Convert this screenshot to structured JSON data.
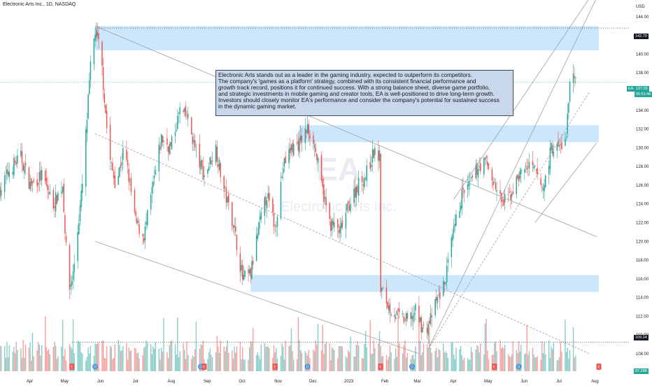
{
  "header": {
    "title": "Electronic Arts Inc., 1D, NASDAQ"
  },
  "watermark": {
    "symbol": "EA",
    "name": "Electronic Arts Inc."
  },
  "annotation": {
    "lines": [
      "Electronic Arts stands out as a leader in the gaming industry, expected to outperform its competitors.",
      "The company's 'games as a platform' strategy, combined with its consistent financial performance and",
      "growth track record, positions it for continued success. With a strong balance sheet, diverse game portfolio,",
      "and strategic investments in mobile gaming and creator tools, EA is well-positioned to drive long-term growth.",
      "Investors should closely monitor EA's performance and consider the company's potential for sustained success",
      "in the dynamic gaming market."
    ]
  },
  "price_axis": {
    "currency": "USD",
    "current_symbol": "EA",
    "current_price": "137.02",
    "countdown": "05:51:46",
    "marker_high": "142.79",
    "marker_low": "109.24",
    "volume_marker": "87.28K"
  },
  "colors": {
    "up": "#26a69a",
    "down": "#ef5350",
    "zone": "#bbdefb",
    "trend": "#9e9e9e",
    "annotation_bg": "#c9d7ea"
  },
  "chart_data": {
    "type": "candlestick",
    "ylim": [
      106,
      146
    ],
    "yticks": [
      106,
      108,
      110,
      112,
      114,
      116,
      118,
      120,
      122,
      124,
      126,
      128,
      130,
      132,
      134,
      136,
      138,
      140,
      142,
      144
    ],
    "x_months": [
      {
        "label": "Apr",
        "date": "2022-04-01"
      },
      {
        "label": "May",
        "date": "2022-05-01"
      },
      {
        "label": "Jun",
        "date": "2022-06-01"
      },
      {
        "label": "Jul",
        "date": "2022-07-01"
      },
      {
        "label": "Aug",
        "date": "2022-08-01"
      },
      {
        "label": "Sep",
        "date": "2022-09-01"
      },
      {
        "label": "Oct",
        "date": "2022-10-01"
      },
      {
        "label": "Nov",
        "date": "2022-11-01"
      },
      {
        "label": "Dec",
        "date": "2022-12-01"
      },
      {
        "label": "2023",
        "date": "2023-01-01"
      },
      {
        "label": "Feb",
        "date": "2023-02-01"
      },
      {
        "label": "Mar",
        "date": "2023-03-01"
      },
      {
        "label": "Apr",
        "date": "2023-04-01"
      },
      {
        "label": "May",
        "date": "2023-05-01"
      },
      {
        "label": "Jun",
        "date": "2023-06-01"
      },
      {
        "label": "Jul",
        "date": "2023-07-01"
      },
      {
        "label": "Aug",
        "date": "2023-08-01"
      }
    ],
    "date_range": [
      "2022-03-10",
      "2023-08-08"
    ],
    "close_path": [
      [
        "2022-03-10",
        125.5
      ],
      [
        "2022-03-20",
        128.0
      ],
      [
        "2022-03-28",
        129.0
      ],
      [
        "2022-04-05",
        126.0
      ],
      [
        "2022-04-15",
        127.0
      ],
      [
        "2022-04-25",
        124.0
      ],
      [
        "2022-05-03",
        126.0
      ],
      [
        "2022-05-08",
        114.5
      ],
      [
        "2022-05-12",
        116.5
      ],
      [
        "2022-05-20",
        126.0
      ],
      [
        "2022-05-27",
        138.5
      ],
      [
        "2022-05-31",
        142.5
      ],
      [
        "2022-06-05",
        140.0
      ],
      [
        "2022-06-12",
        129.0
      ],
      [
        "2022-06-18",
        126.0
      ],
      [
        "2022-06-25",
        130.0
      ],
      [
        "2022-07-05",
        122.0
      ],
      [
        "2022-07-12",
        120.5
      ],
      [
        "2022-07-20",
        126.0
      ],
      [
        "2022-07-27",
        131.0
      ],
      [
        "2022-08-04",
        130.0
      ],
      [
        "2022-08-12",
        134.0
      ],
      [
        "2022-08-19",
        133.0
      ],
      [
        "2022-08-27",
        129.0
      ],
      [
        "2022-09-02",
        127.0
      ],
      [
        "2022-09-12",
        130.0
      ],
      [
        "2022-09-18",
        126.0
      ],
      [
        "2022-09-27",
        122.0
      ],
      [
        "2022-10-05",
        116.0
      ],
      [
        "2022-10-12",
        116.5
      ],
      [
        "2022-10-19",
        121.5
      ],
      [
        "2022-10-26",
        125.0
      ],
      [
        "2022-11-02",
        121.5
      ],
      [
        "2022-11-09",
        128.0
      ],
      [
        "2022-11-16",
        130.0
      ],
      [
        "2022-11-23",
        130.5
      ],
      [
        "2022-11-30",
        132.0
      ],
      [
        "2022-12-05",
        131.0
      ],
      [
        "2022-12-12",
        126.0
      ],
      [
        "2022-12-19",
        122.0
      ],
      [
        "2022-12-28",
        121.0
      ],
      [
        "2023-01-05",
        124.0
      ],
      [
        "2023-01-12",
        126.0
      ],
      [
        "2023-01-19",
        127.0
      ],
      [
        "2023-01-26",
        129.5
      ],
      [
        "2023-01-31",
        129.0
      ],
      [
        "2023-02-01",
        115.0
      ],
      [
        "2023-02-08",
        113.0
      ],
      [
        "2023-02-16",
        112.0
      ],
      [
        "2023-02-24",
        111.5
      ],
      [
        "2023-03-03",
        112.5
      ],
      [
        "2023-03-10",
        110.5
      ],
      [
        "2023-03-14",
        111.0
      ],
      [
        "2023-03-21",
        113.5
      ],
      [
        "2023-03-28",
        115.5
      ],
      [
        "2023-04-05",
        121.0
      ],
      [
        "2023-04-12",
        125.0
      ],
      [
        "2023-04-19",
        126.0
      ],
      [
        "2023-04-26",
        128.0
      ],
      [
        "2023-05-03",
        128.5
      ],
      [
        "2023-05-10",
        126.0
      ],
      [
        "2023-05-17",
        124.0
      ],
      [
        "2023-05-24",
        125.0
      ],
      [
        "2023-05-31",
        127.0
      ],
      [
        "2023-06-07",
        128.0
      ],
      [
        "2023-06-14",
        127.5
      ],
      [
        "2023-06-21",
        125.5
      ],
      [
        "2023-06-28",
        130.0
      ],
      [
        "2023-07-05",
        130.0
      ],
      [
        "2023-07-11",
        131.0
      ],
      [
        "2023-07-14",
        137.5
      ],
      [
        "2023-07-19",
        137.0
      ]
    ],
    "zones": [
      {
        "y1": 140.4,
        "y2": 143.0,
        "from": "2022-05-31",
        "to": "2023-08-08"
      },
      {
        "y1": 130.6,
        "y2": 132.4,
        "from": "2022-11-23",
        "to": "2023-08-08"
      },
      {
        "y1": 114.6,
        "y2": 116.4,
        "from": "2022-10-12",
        "to": "2023-08-08"
      }
    ],
    "trendlines": [
      {
        "style": "solid",
        "from": [
          "2022-05-31",
          143.0
        ],
        "to": [
          "2023-08-06",
          120.5
        ]
      },
      {
        "style": "solid",
        "from": [
          "2022-05-31",
          120.0
        ],
        "to": [
          "2023-03-06",
          108.0
        ]
      },
      {
        "style": "dashed",
        "from": [
          "2022-05-31",
          131.5
        ],
        "to": [
          "2023-07-31",
          108.0
        ]
      },
      {
        "style": "solid",
        "from": [
          "2023-03-14",
          108.5
        ],
        "to": [
          "2023-08-06",
          146.0
        ]
      },
      {
        "style": "solid",
        "from": [
          "2023-04-05",
          124.5
        ],
        "to": [
          "2023-07-31",
          146.0
        ]
      },
      {
        "style": "dashed",
        "from": [
          "2023-03-14",
          108.5
        ],
        "to": [
          "2023-07-31",
          136.0
        ]
      },
      {
        "style": "solid",
        "from": [
          "2023-06-14",
          122.0
        ],
        "to": [
          "2023-08-06",
          130.5
        ]
      }
    ],
    "levels": [
      {
        "value": 142.79,
        "from": "2022-05-31"
      },
      {
        "value": 109.24,
        "from": "2022-05-11"
      },
      {
        "value": 137.02,
        "from": "2022-03-10"
      }
    ],
    "events": [
      {
        "kind": "E",
        "date": "2022-05-11"
      },
      {
        "kind": "D",
        "date": "2022-05-31"
      },
      {
        "kind": "D",
        "date": "2022-08-30"
      },
      {
        "kind": "E",
        "date": "2022-09-02"
      },
      {
        "kind": "D",
        "date": "2022-11-30"
      },
      {
        "kind": "E",
        "date": "2022-11-02"
      },
      {
        "kind": "E",
        "date": "2023-02-01"
      },
      {
        "kind": "D",
        "date": "2023-02-28"
      },
      {
        "kind": "E",
        "date": "2023-05-10"
      },
      {
        "kind": "D",
        "date": "2023-05-31"
      },
      {
        "kind": "E",
        "date": "2023-08-08"
      }
    ]
  }
}
